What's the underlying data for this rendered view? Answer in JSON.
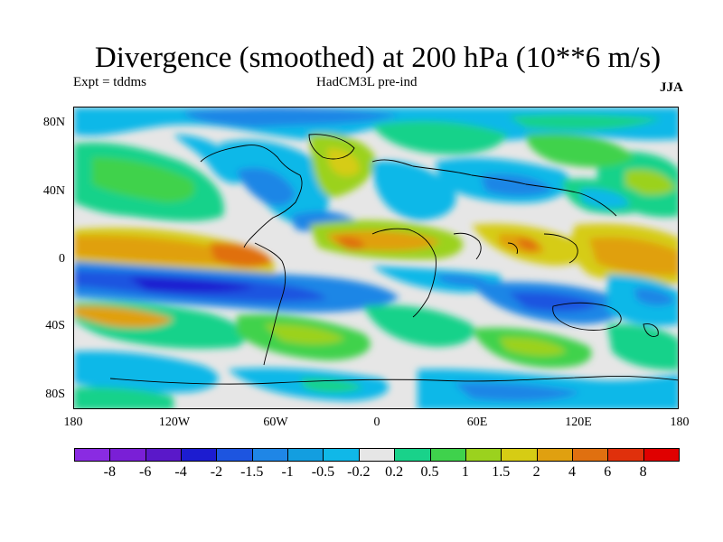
{
  "title": "Divergence (smoothed) at 200 hPa (10**6 m/s)",
  "subtitle_left": "Expt = tddms",
  "subtitle_center": "HadCM3L pre-ind",
  "subtitle_right": "JJA",
  "lat_ticks": [
    "80N",
    "40N",
    "0",
    "40S",
    "80S"
  ],
  "lon_ticks": [
    "180",
    "120W",
    "60W",
    "0",
    "60E",
    "120E",
    "180"
  ],
  "colorbar": {
    "labels": [
      "-8",
      "-6",
      "-4",
      "-2",
      "-1.5",
      "-1",
      "-0.5",
      "-0.2",
      "0.2",
      "0.5",
      "1",
      "1.5",
      "2",
      "4",
      "6",
      "8"
    ],
    "colors": [
      "#8a2be2",
      "#7a1fd6",
      "#5a18c9",
      "#1c1cd0",
      "#1d55e0",
      "#1f86e6",
      "#139ee0",
      "#10b8e8",
      "#e6e6e6",
      "#19d28a",
      "#3fd24c",
      "#9bd21e",
      "#d6cc14",
      "#e0a010",
      "#e07010",
      "#e0300c",
      "#e00000"
    ]
  },
  "palette": {
    "neutral": "#e6e6e6",
    "weak_conv": "#10b8e8",
    "mid_conv": "#1f86e6",
    "strong_conv": "#1d55e0",
    "very_strong_conv": "#1c1cd0",
    "weak_div": "#19d28a",
    "mid_div": "#3fd24c",
    "div_15": "#9bd21e",
    "div_2": "#d6cc14",
    "div_4": "#e0a010",
    "div_6": "#e07010"
  }
}
